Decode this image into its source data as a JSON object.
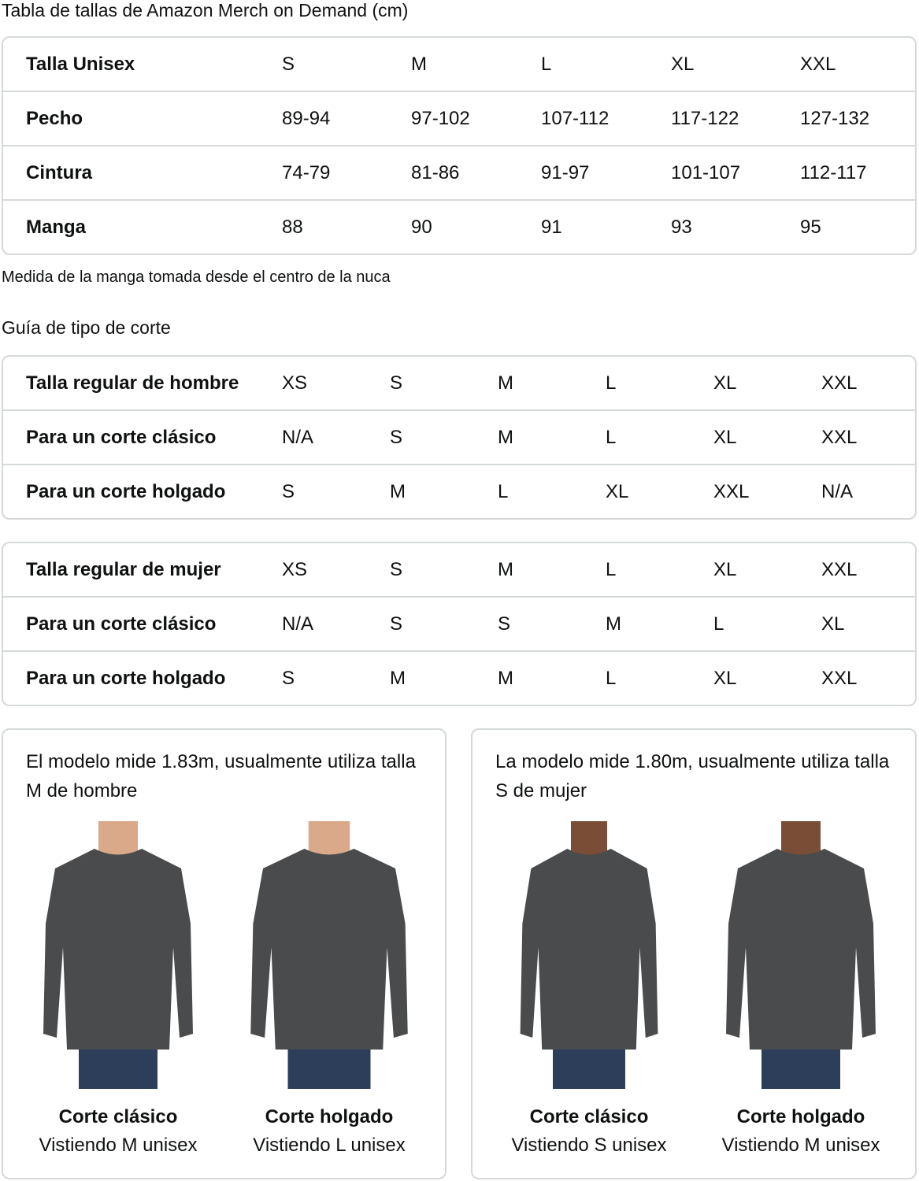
{
  "size_chart": {
    "title": "Tabla de tallas de Amazon Merch on Demand (cm)",
    "rows": [
      [
        "Talla Unisex",
        "S",
        "M",
        "L",
        "XL",
        "XXL"
      ],
      [
        "Pecho",
        "89-94",
        "97-102",
        "107-112",
        "117-122",
        "127-132"
      ],
      [
        "Cintura",
        "74-79",
        "81-86",
        "91-97",
        "101-107",
        "112-117"
      ],
      [
        "Manga",
        "88",
        "90",
        "91",
        "93",
        "95"
      ]
    ],
    "note": "Medida de la manga tomada desde el centro de la nuca"
  },
  "fit_guide": {
    "title": "Guía de tipo de corte",
    "men": [
      [
        "Talla regular de hombre",
        "XS",
        "S",
        "M",
        "L",
        "XL",
        "XXL"
      ],
      [
        "Para un corte clásico",
        "N/A",
        "S",
        "M",
        "L",
        "XL",
        "XXL"
      ],
      [
        "Para un corte holgado",
        "S",
        "M",
        "L",
        "XL",
        "XXL",
        "N/A"
      ]
    ],
    "women": [
      [
        "Talla regular de mujer",
        "XS",
        "S",
        "M",
        "L",
        "XL",
        "XXL"
      ],
      [
        "Para un corte clásico",
        "N/A",
        "S",
        "S",
        "M",
        "L",
        "XL"
      ],
      [
        "Para un corte holgado",
        "S",
        "M",
        "M",
        "L",
        "XL",
        "XXL"
      ]
    ]
  },
  "models": [
    {
      "description": "El modelo mide 1.83m, usualmente utiliza talla M de hombre",
      "photos": [
        {
          "fit": "Corte clásico",
          "wearing": "Vistiendo M unisex"
        },
        {
          "fit": "Corte holgado",
          "wearing": "Vistiendo L unisex"
        }
      ]
    },
    {
      "description": "La modelo mide 1.80m, usualmente utiliza talla S de mujer",
      "photos": [
        {
          "fit": "Corte clásico",
          "wearing": "Vistiendo S unisex"
        },
        {
          "fit": "Corte holgado",
          "wearing": "Vistiendo M unisex"
        }
      ]
    }
  ],
  "colors": {
    "border": "#d5d9d9",
    "shirt": "#4a4b4d",
    "jeans": "#2d3e5a",
    "skin_m": "#d9a98a",
    "skin_f": "#7a4e36"
  }
}
